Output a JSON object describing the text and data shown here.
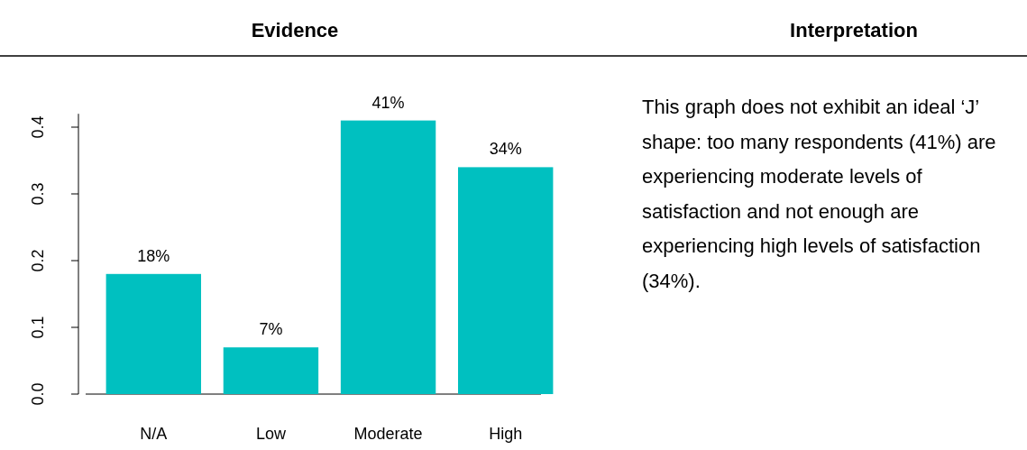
{
  "chart_data": [
    {
      "type": "bar",
      "title": "Evidence",
      "categories": [
        "N/A",
        "Low",
        "Moderate",
        "High"
      ],
      "values": [
        0.18,
        0.07,
        0.41,
        0.34
      ],
      "value_labels": [
        "18%",
        "7%",
        "41%",
        "34%"
      ],
      "color": "#00c0c0",
      "ylim": [
        0,
        0.42
      ],
      "yticks": [
        {
          "value": 0,
          "label": "0.0"
        },
        0.1,
        0.2,
        0.3,
        0.4
      ],
      "grid": false
    },
    {
      "type": "other",
      "title": "Interpretation",
      "annotations": [
        "This graph does not exhibit an ideal ‘J’ shape: too many respondents (41%) are experiencing moderate levels of satisfaction and not enough are experiencing high levels of satisfaction (34%)."
      ]
    }
  ]
}
